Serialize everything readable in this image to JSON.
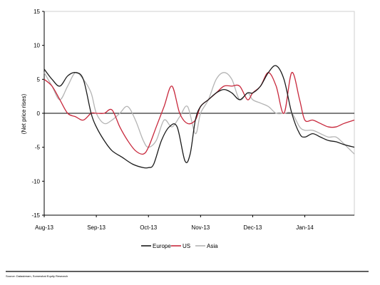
{
  "chart_data": {
    "type": "line",
    "ylabel": "(Net price rises)",
    "ylim": [
      -15,
      15
    ],
    "yticks": [
      "15",
      "10",
      "5",
      "0",
      "-5",
      "-10",
      "-15"
    ],
    "xticks": [
      "Aug-13",
      "Sep-13",
      "Oct-13",
      "Nov-13",
      "Dec-13",
      "Jan-14"
    ],
    "xlim": [
      0,
      5.95
    ],
    "grid": false,
    "legend_position": "bottom-center",
    "series": [
      {
        "name": "Europe",
        "color": "#1a1a1a",
        "x": [
          0,
          0.15,
          0.3,
          0.45,
          0.6,
          0.75,
          0.9,
          1.0,
          1.15,
          1.3,
          1.5,
          1.7,
          1.9,
          2.0,
          2.1,
          2.25,
          2.4,
          2.55,
          2.7,
          2.8,
          2.9,
          3.0,
          3.15,
          3.3,
          3.45,
          3.6,
          3.75,
          3.9,
          4.0,
          4.15,
          4.3,
          4.45,
          4.6,
          4.75,
          4.9,
          5.0,
          5.15,
          5.3,
          5.45,
          5.6,
          5.75,
          5.95
        ],
        "y": [
          6.5,
          5,
          4,
          5.5,
          6,
          5,
          0,
          -2,
          -4,
          -5.5,
          -6.5,
          -7.5,
          -8,
          -8,
          -7.5,
          -4,
          -2,
          -2,
          -7,
          -6,
          -1,
          1,
          2,
          3,
          3.5,
          3,
          2,
          3,
          3,
          4,
          6,
          7,
          5,
          0,
          -3,
          -3.5,
          -3,
          -3.5,
          -4,
          -4.2,
          -4.6,
          -5
        ]
      },
      {
        "name": "US",
        "color": "#c8283c",
        "x": [
          0,
          0.15,
          0.3,
          0.45,
          0.6,
          0.75,
          0.9,
          1.0,
          1.15,
          1.3,
          1.45,
          1.6,
          1.75,
          1.9,
          2.0,
          2.15,
          2.3,
          2.45,
          2.6,
          2.75,
          2.9,
          3.0,
          3.15,
          3.3,
          3.45,
          3.6,
          3.75,
          3.9,
          4.0,
          4.15,
          4.3,
          4.45,
          4.6,
          4.75,
          4.9,
          5.0,
          5.15,
          5.3,
          5.45,
          5.6,
          5.75,
          5.95
        ],
        "y": [
          5,
          4,
          2,
          0,
          -0.5,
          -1,
          0,
          0,
          0,
          0.5,
          -2,
          -4,
          -5.5,
          -6,
          -5,
          -2,
          1,
          4,
          0,
          -1.5,
          -1,
          1,
          2,
          3,
          4,
          4,
          4,
          2,
          3,
          4,
          6,
          4,
          0,
          6,
          2,
          -1,
          -1,
          -1.5,
          -2,
          -2,
          -1.5,
          -1
        ]
      },
      {
        "name": "Asia",
        "color": "#b4b4b4",
        "x": [
          0,
          0.15,
          0.3,
          0.45,
          0.6,
          0.75,
          0.9,
          1.0,
          1.15,
          1.3,
          1.45,
          1.6,
          1.75,
          1.9,
          2.0,
          2.15,
          2.3,
          2.45,
          2.6,
          2.75,
          2.9,
          3.0,
          3.15,
          3.3,
          3.45,
          3.6,
          3.75,
          3.9,
          4.0,
          4.15,
          4.3,
          4.45,
          4.6,
          4.75,
          4.9,
          5.0,
          5.15,
          5.3,
          5.45,
          5.6,
          5.75,
          5.95
        ],
        "y": [
          6,
          4,
          2,
          4,
          6,
          5,
          3,
          0,
          -1.5,
          -1,
          0,
          1,
          -1,
          -4,
          -5,
          -4,
          -1,
          -2,
          -0.5,
          1,
          -3,
          0,
          2,
          5,
          6,
          5,
          2,
          3,
          2,
          1.5,
          1,
          0,
          0,
          0,
          -2,
          -2.5,
          -2.5,
          -3,
          -3.5,
          -3.5,
          -4.5,
          -6
        ]
      }
    ],
    "source": "Source: Datastream, Somewhat Equity Research"
  }
}
